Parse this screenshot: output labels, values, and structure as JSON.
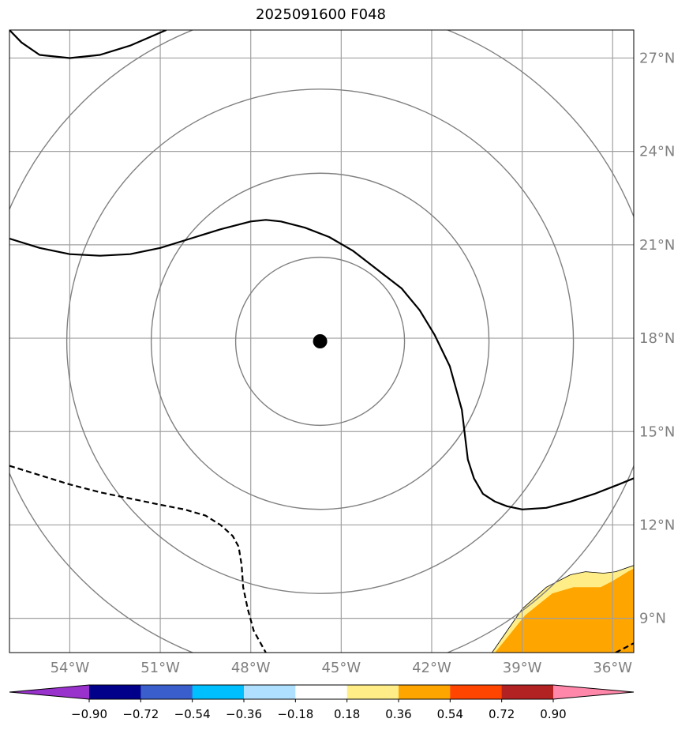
{
  "title": "2025091600 F048",
  "chart_data": {
    "type": "contour-map",
    "title": "2025091600 F048",
    "projection": "lon-lat",
    "xlim": [
      -56,
      -35.3
    ],
    "ylim": [
      7.9,
      27.9
    ],
    "grid": true,
    "lon_ticks": [
      -54,
      -51,
      -48,
      -45,
      -42,
      -39,
      -36
    ],
    "lon_tick_labels": [
      "54°W",
      "51°W",
      "48°W",
      "45°W",
      "42°W",
      "39°W",
      "36°W"
    ],
    "lat_ticks": [
      9,
      12,
      15,
      18,
      21,
      24,
      27
    ],
    "lat_tick_labels": [
      "9°N",
      "12°N",
      "15°N",
      "18°N",
      "21°N",
      "24°N",
      "27°N"
    ],
    "center": {
      "lon": -45.7,
      "lat": 17.9
    },
    "range_rings": {
      "lon_radii": [
        2.8,
        5.6,
        8.4,
        11.2
      ],
      "lat_radii": [
        2.7,
        5.4,
        8.1,
        10.8
      ],
      "color": "#808080"
    },
    "contours": [
      {
        "style": "solid",
        "points": [
          [
            -56,
            27.9
          ],
          [
            -55.6,
            27.5
          ],
          [
            -55.0,
            27.1
          ],
          [
            -54.0,
            27.0
          ],
          [
            -53.0,
            27.1
          ],
          [
            -52.0,
            27.4
          ],
          [
            -50.8,
            27.9
          ]
        ]
      },
      {
        "style": "solid",
        "points": [
          [
            -56,
            21.2
          ],
          [
            -55,
            20.9
          ],
          [
            -54,
            20.7
          ],
          [
            -53,
            20.65
          ],
          [
            -52,
            20.7
          ],
          [
            -51,
            20.9
          ],
          [
            -50,
            21.2
          ],
          [
            -49,
            21.5
          ],
          [
            -48,
            21.75
          ],
          [
            -47.5,
            21.8
          ],
          [
            -47,
            21.75
          ],
          [
            -46.2,
            21.55
          ],
          [
            -45.4,
            21.25
          ],
          [
            -44.6,
            20.8
          ],
          [
            -43.8,
            20.2
          ],
          [
            -43.0,
            19.6
          ],
          [
            -42.4,
            18.9
          ],
          [
            -41.9,
            18.1
          ],
          [
            -41.4,
            17.1
          ],
          [
            -41.0,
            15.7
          ],
          [
            -40.9,
            14.9
          ],
          [
            -40.8,
            14.1
          ],
          [
            -40.6,
            13.5
          ],
          [
            -40.3,
            13.0
          ],
          [
            -39.9,
            12.75
          ],
          [
            -39.5,
            12.6
          ],
          [
            -39.0,
            12.5
          ],
          [
            -38.2,
            12.55
          ],
          [
            -37.4,
            12.75
          ],
          [
            -36.6,
            13.0
          ],
          [
            -35.8,
            13.3
          ],
          [
            -35.3,
            13.5
          ]
        ]
      },
      {
        "style": "dashed",
        "points": [
          [
            -56,
            13.9
          ],
          [
            -55,
            13.6
          ],
          [
            -54,
            13.3
          ],
          [
            -53,
            13.05
          ],
          [
            -52,
            12.85
          ],
          [
            -51,
            12.65
          ],
          [
            -50.2,
            12.5
          ],
          [
            -49.5,
            12.3
          ],
          [
            -49.0,
            12.0
          ],
          [
            -48.6,
            11.65
          ],
          [
            -48.4,
            11.3
          ],
          [
            -48.3,
            10.7
          ],
          [
            -48.25,
            10.0
          ],
          [
            -48.1,
            9.3
          ],
          [
            -47.9,
            8.6
          ],
          [
            -47.5,
            7.9
          ]
        ]
      },
      {
        "style": "dashed",
        "points": [
          [
            -35.9,
            7.9
          ],
          [
            -35.3,
            8.2
          ]
        ]
      }
    ],
    "shaded_regions": [
      {
        "level": "0.18 to 0.36",
        "color": "#FFEE88",
        "points": [
          [
            -40.0,
            7.9
          ],
          [
            -39.0,
            9.3
          ],
          [
            -38.2,
            10.0
          ],
          [
            -37.4,
            10.4
          ],
          [
            -36.9,
            10.5
          ],
          [
            -36.3,
            10.45
          ],
          [
            -35.9,
            10.5
          ],
          [
            -35.3,
            10.7
          ],
          [
            -35.3,
            7.9
          ]
        ]
      },
      {
        "level": "0.36 to 0.54",
        "color": "#FFA500",
        "points": [
          [
            -39.9,
            7.9
          ],
          [
            -38.9,
            9.1
          ],
          [
            -38.0,
            9.8
          ],
          [
            -37.3,
            10.0
          ],
          [
            -36.4,
            10.0
          ],
          [
            -36.0,
            10.2
          ],
          [
            -35.5,
            10.5
          ],
          [
            -35.3,
            10.6
          ],
          [
            -35.3,
            7.9
          ]
        ]
      }
    ],
    "colorbar": {
      "levels": [
        -0.9,
        -0.72,
        -0.54,
        -0.36,
        -0.18,
        0.18,
        0.36,
        0.54,
        0.72,
        0.9
      ],
      "tick_labels": [
        "−0.90",
        "−0.72",
        "−0.54",
        "−0.36",
        "−0.18",
        "0.18",
        "0.36",
        "0.54",
        "0.72",
        "0.90"
      ],
      "colors": [
        "#9932CC",
        "#00008B",
        "#3A5FCD",
        "#00BFFF",
        "#B0E0FF",
        "#FFFFFF",
        "#FFEE88",
        "#FFA500",
        "#FF4500",
        "#B22222",
        "#FF88AA"
      ],
      "extend": "both"
    }
  }
}
